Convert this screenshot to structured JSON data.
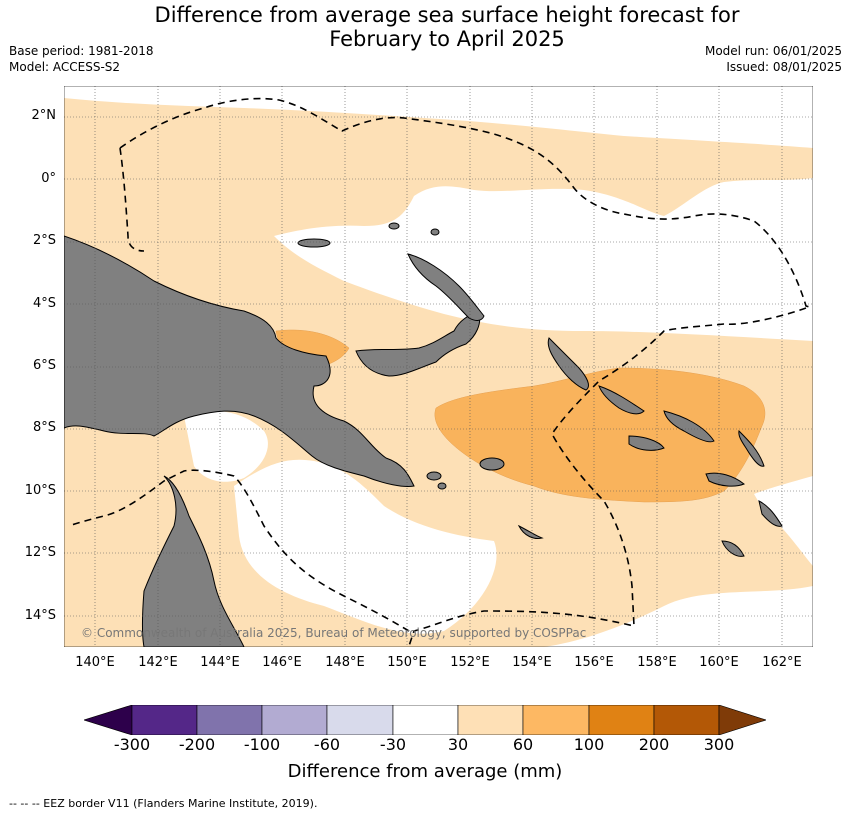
{
  "header": {
    "title_line1": "Difference from average sea surface height forecast for",
    "title_line2": "February to April 2025",
    "base_period": "Base period: 1981-2018",
    "model": "Model: ACCESS-S2",
    "model_run": "Model run: 06/01/2025",
    "issued": "Issued: 08/01/2025"
  },
  "map": {
    "lat_labels": [
      "2°N",
      "0°",
      "2°S",
      "4°S",
      "6°S",
      "8°S",
      "10°S",
      "12°S",
      "14°S"
    ],
    "lon_labels": [
      "140°E",
      "142°E",
      "144°E",
      "146°E",
      "148°E",
      "150°E",
      "152°E",
      "154°E",
      "156°E",
      "158°E",
      "160°E",
      "162°E"
    ],
    "copyright": "© Commonwealth of Australia 2025, Bureau of Meteorology, supported by COSPPac",
    "colors": {
      "land": "#808080",
      "ocean_light": "#fde0b6",
      "ocean_medium": "#f9b35c",
      "neutral": "#ffffff"
    }
  },
  "legend": {
    "title": "Difference from average (mm)",
    "tick_labels": [
      "-300",
      "-200",
      "-100",
      "-60",
      "-30",
      "30",
      "60",
      "100",
      "200",
      "300"
    ],
    "colors": [
      "#2d004b",
      "#542788",
      "#8073ac",
      "#b2abd2",
      "#d8daeb",
      "#ffffff",
      "#fee0b6",
      "#fdb863",
      "#e08214",
      "#b35806",
      "#7f3b08"
    ]
  },
  "footnote": "--  --  -- EEZ border V11 (Flanders Marine Institute, 2019)."
}
